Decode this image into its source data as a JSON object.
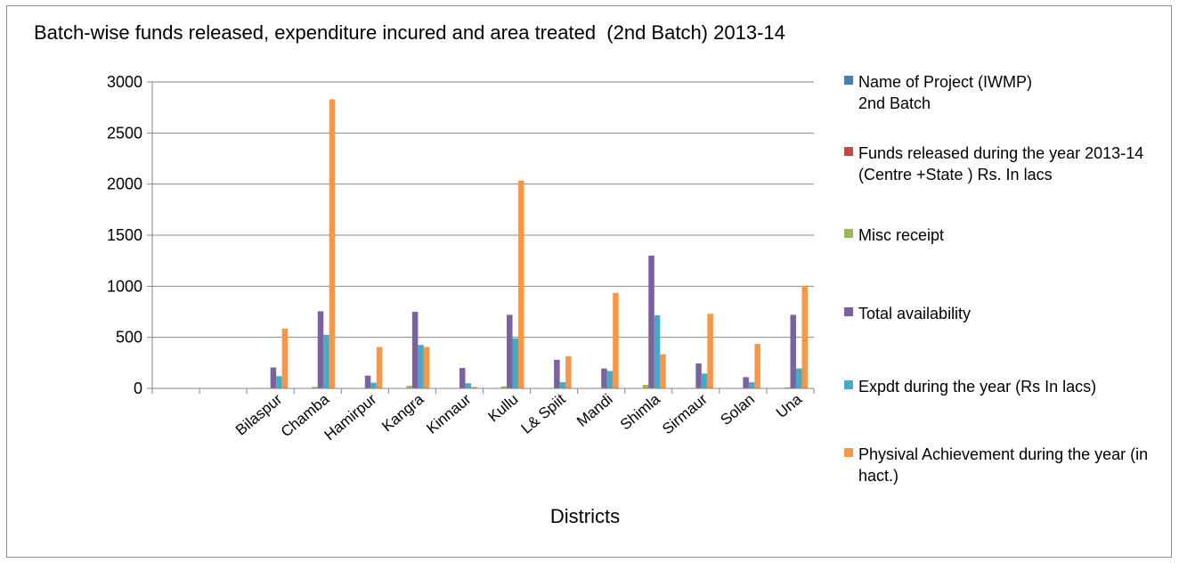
{
  "chart_data": {
    "type": "bar",
    "title": "Batch-wise funds released, expenditure incured and area treated  (2nd Batch) 2013-14",
    "xlabel": "Districts",
    "ylabel": "",
    "ylim": [
      0,
      3000
    ],
    "yticks": [
      0,
      500,
      1000,
      1500,
      2000,
      2500,
      3000
    ],
    "grid": true,
    "legend_position": "right",
    "categories": [
      "",
      "",
      "Bilaspur",
      "Chamba",
      "Hamirpur",
      "Kangra",
      "Kinnaur",
      "Kullu",
      "L& Spiit",
      "Mandi",
      "Shimla",
      "Sirmaur",
      "Solan",
      "Una"
    ],
    "series": [
      {
        "name": "Name of Project (IWMP)\n2nd  Batch",
        "color": "#4a7ebb",
        "values": [
          0,
          0,
          0,
          0,
          0,
          0,
          0,
          0,
          0,
          0,
          0,
          0,
          0,
          0
        ]
      },
      {
        "name": "Funds released during the year 2013-14 (Centre +State ) Rs. In lacs",
        "color": "#be4b48",
        "values": [
          0,
          0,
          0,
          0,
          0,
          0,
          0,
          0,
          0,
          0,
          0,
          0,
          0,
          0
        ]
      },
      {
        "name": "Misc receipt",
        "color": "#98b954",
        "values": [
          0,
          0,
          5,
          15,
          5,
          25,
          3,
          20,
          5,
          5,
          35,
          5,
          5,
          10
        ]
      },
      {
        "name": "Total availability",
        "color": "#7d60a0",
        "values": [
          0,
          0,
          205,
          755,
          125,
          750,
          200,
          720,
          280,
          195,
          1300,
          245,
          110,
          720
        ]
      },
      {
        "name": "Expdt during the year (Rs In lacs)",
        "color": "#46aac5",
        "values": [
          0,
          0,
          120,
          525,
          55,
          425,
          50,
          490,
          60,
          170,
          715,
          145,
          60,
          195
        ]
      },
      {
        "name": "Physival Achievement during the year (in hact.)",
        "color": "#f79646",
        "values": [
          0,
          0,
          585,
          2830,
          405,
          405,
          15,
          2035,
          315,
          935,
          335,
          730,
          435,
          1005
        ]
      }
    ]
  }
}
